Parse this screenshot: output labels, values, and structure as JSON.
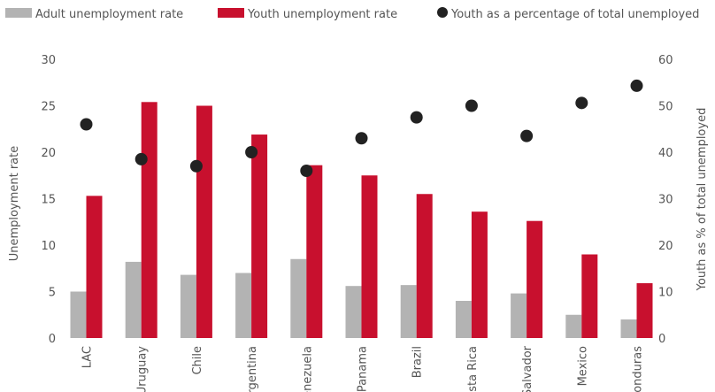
{
  "chart_data": {
    "type": "bar",
    "categories": [
      "LAC",
      "Uruguay",
      "Chile",
      "Argentina",
      "Venezuela",
      "Panama",
      "Brazil",
      "Costa Rica",
      "El Salvador",
      "Mexico",
      "Honduras"
    ],
    "series": [
      {
        "name": "Adult unemployment rate",
        "kind": "bar",
        "axis": "left",
        "color": "#b3b3b3",
        "values": [
          5.0,
          8.2,
          6.8,
          7.0,
          8.5,
          5.6,
          5.7,
          4.0,
          4.8,
          2.5,
          2.0
        ]
      },
      {
        "name": "Youth unemployment rate",
        "kind": "bar",
        "axis": "left",
        "color": "#c8102e",
        "values": [
          15.3,
          25.4,
          25.0,
          21.9,
          18.6,
          17.5,
          15.5,
          13.6,
          12.6,
          9.0,
          5.9
        ]
      },
      {
        "name": "Youth as a percentage of total unemployed",
        "kind": "scatter",
        "axis": "right",
        "color": "#222222",
        "values": [
          46.0,
          38.5,
          37.0,
          40.0,
          36.0,
          43.0,
          47.5,
          50.0,
          43.5,
          50.6,
          54.3
        ]
      }
    ],
    "ylabel": "Unemployment rate",
    "ylim": [
      0,
      30
    ],
    "yticks": [
      "0",
      "5",
      "10",
      "15",
      "20",
      "25",
      "30"
    ],
    "y2label": "Youth as % of total unemployed",
    "y2lim": [
      0,
      60
    ],
    "y2ticks": [
      "0",
      "10",
      "20",
      "30",
      "40",
      "50",
      "60"
    ],
    "legend_position": "top-left",
    "grid": false
  }
}
